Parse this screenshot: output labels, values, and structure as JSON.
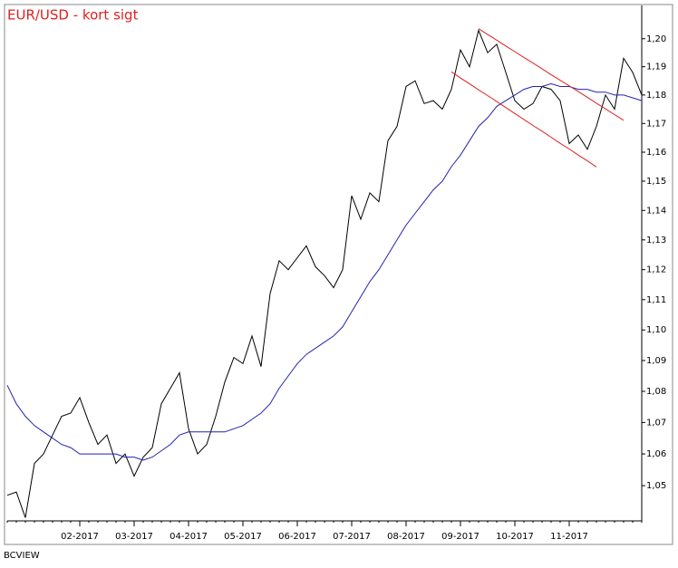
{
  "chart_data": {
    "type": "line",
    "title": "EUR/USD - kort sigt",
    "source": "BCVIEW",
    "log": true,
    "categories": [
      null,
      null,
      null,
      null,
      null,
      null,
      null,
      null,
      "02-2017",
      null,
      null,
      null,
      null,
      null,
      "03-2017",
      null,
      null,
      null,
      null,
      null,
      "04-2017",
      null,
      null,
      null,
      null,
      null,
      "05-2017",
      null,
      null,
      null,
      null,
      null,
      "06-2017",
      null,
      null,
      null,
      null,
      null,
      "07-2017",
      null,
      null,
      null,
      null,
      null,
      "08-2017",
      null,
      null,
      null,
      null,
      null,
      "09-2017",
      null,
      null,
      null,
      null,
      null,
      "10-2017",
      null,
      null,
      null,
      null,
      null,
      "11-2017",
      null,
      null,
      null,
      null,
      null,
      null,
      null,
      null
    ],
    "series": [
      {
        "color": "#000000",
        "values": [
          1.047,
          1.048,
          1.04,
          1.057,
          1.06,
          1.066,
          1.072,
          1.073,
          1.078,
          1.07,
          1.063,
          1.066,
          1.057,
          1.06,
          1.053,
          1.059,
          1.062,
          1.076,
          1.081,
          1.086,
          1.068,
          1.06,
          1.063,
          1.072,
          1.083,
          1.091,
          1.089,
          1.098,
          1.088,
          1.112,
          1.123,
          1.12,
          1.124,
          1.128,
          1.121,
          1.118,
          1.114,
          1.12,
          1.145,
          1.137,
          1.146,
          1.143,
          1.164,
          1.169,
          1.183,
          1.185,
          1.177,
          1.178,
          1.175,
          1.182,
          1.196,
          1.19,
          1.203,
          1.195,
          1.198,
          1.188,
          1.178,
          1.175,
          1.177,
          1.183,
          1.182,
          1.178,
          1.163,
          1.166,
          1.161,
          1.169,
          1.18,
          1.175,
          1.193,
          1.188,
          1.18
        ]
      },
      {
        "color": "#2323b0",
        "values": [
          1.082,
          1.076,
          1.072,
          1.069,
          1.067,
          1.065,
          1.063,
          1.062,
          1.06,
          1.06,
          1.06,
          1.06,
          1.06,
          1.059,
          1.059,
          1.058,
          1.059,
          1.061,
          1.063,
          1.066,
          1.067,
          1.067,
          1.067,
          1.067,
          1.067,
          1.068,
          1.069,
          1.071,
          1.073,
          1.076,
          1.081,
          1.085,
          1.089,
          1.092,
          1.094,
          1.096,
          1.098,
          1.101,
          1.106,
          1.111,
          1.116,
          1.12,
          1.125,
          1.13,
          1.135,
          1.139,
          1.143,
          1.147,
          1.15,
          1.155,
          1.159,
          1.164,
          1.169,
          1.172,
          1.176,
          1.178,
          1.18,
          1.182,
          1.183,
          1.183,
          1.184,
          1.183,
          1.183,
          1.182,
          1.182,
          1.181,
          1.181,
          1.18,
          1.18,
          1.179,
          1.178
        ]
      },
      {
        "color": "#e02020",
        "values": [
          null,
          null,
          null,
          null,
          null,
          null,
          null,
          null,
          null,
          null,
          null,
          null,
          null,
          null,
          null,
          null,
          null,
          null,
          null,
          null,
          null,
          null,
          null,
          null,
          null,
          null,
          null,
          null,
          null,
          null,
          null,
          null,
          null,
          null,
          null,
          null,
          null,
          null,
          null,
          null,
          null,
          null,
          null,
          null,
          null,
          null,
          null,
          null,
          null,
          null,
          null,
          null,
          1.2036,
          1.2015,
          1.1995,
          1.1974,
          1.1954,
          1.1933,
          1.1913,
          1.1893,
          1.1872,
          1.1852,
          1.1832,
          1.1812,
          1.1792,
          1.1771,
          1.1751,
          1.1731,
          1.1711,
          null,
          null
        ]
      },
      {
        "color": "#e02020",
        "values": [
          null,
          null,
          null,
          null,
          null,
          null,
          null,
          null,
          null,
          null,
          null,
          null,
          null,
          null,
          null,
          null,
          null,
          null,
          null,
          null,
          null,
          null,
          null,
          null,
          null,
          null,
          null,
          null,
          null,
          null,
          null,
          null,
          null,
          null,
          null,
          null,
          null,
          null,
          null,
          null,
          null,
          null,
          null,
          null,
          null,
          null,
          null,
          null,
          null,
          1.1882,
          1.186,
          1.184,
          1.1818,
          1.1798,
          1.1777,
          1.1756,
          1.1735,
          1.1714,
          1.1693,
          1.1673,
          1.1652,
          1.1631,
          1.1611,
          1.159,
          1.157,
          1.1549,
          null,
          null,
          null,
          null,
          null
        ]
      }
    ],
    "ylim": [
      1.039,
      1.212
    ],
    "yticks": [
      {
        "value": 1.05,
        "label": "1,05"
      },
      {
        "value": 1.06,
        "label": "1,06"
      },
      {
        "value": 1.07,
        "label": "1,07"
      },
      {
        "value": 1.08,
        "label": "1,08"
      },
      {
        "value": 1.09,
        "label": "1,09"
      },
      {
        "value": 1.1,
        "label": "1,10"
      },
      {
        "value": 1.11,
        "label": "1,11"
      },
      {
        "value": 1.12,
        "label": "1,12"
      },
      {
        "value": 1.13,
        "label": "1,13"
      },
      {
        "value": 1.14,
        "label": "1,14"
      },
      {
        "value": 1.15,
        "label": "1,15"
      },
      {
        "value": 1.16,
        "label": "1,16"
      },
      {
        "value": 1.17,
        "label": "1,17"
      },
      {
        "value": 1.18,
        "label": "1,18"
      },
      {
        "value": 1.19,
        "label": "1,19"
      },
      {
        "value": 1.2,
        "label": "1,20"
      }
    ],
    "title_color": "#e02020"
  }
}
